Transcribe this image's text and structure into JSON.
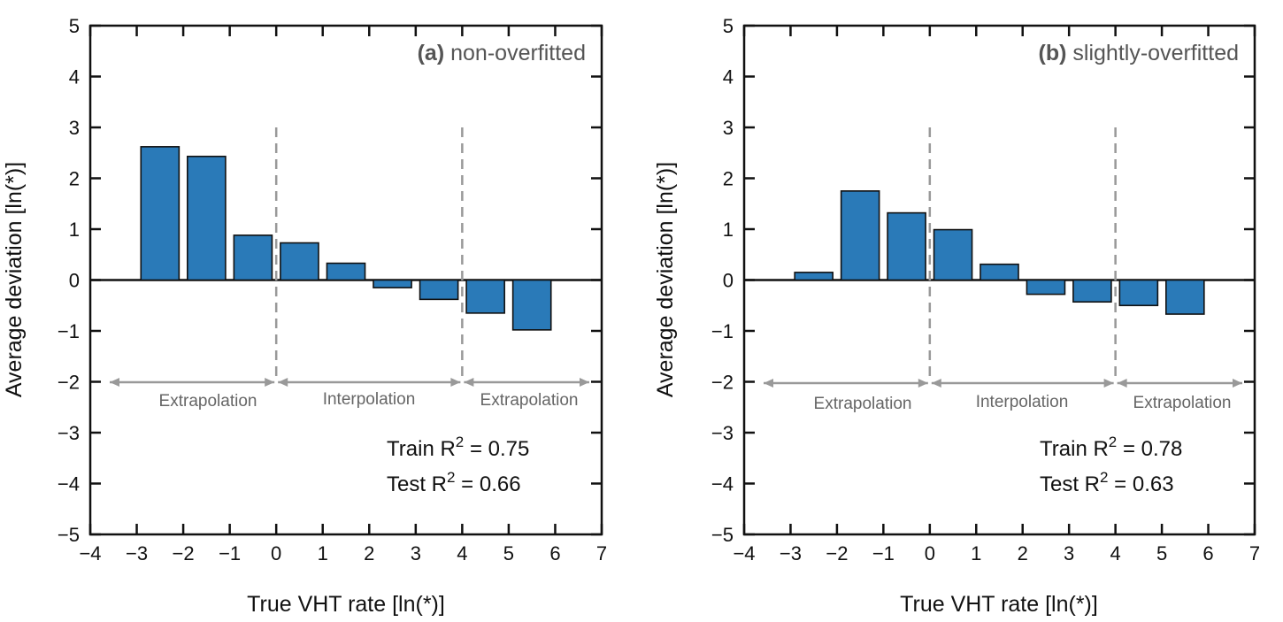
{
  "chart_data": [
    {
      "type": "bar",
      "panel_label": "(a)",
      "title": "non-overfitted",
      "xlabel": "True VHT rate [ln(*)]",
      "ylabel": "Average deviation [ln(*)]",
      "xlim": [
        -4,
        7
      ],
      "ylim": [
        -5,
        5
      ],
      "xticks": [
        -4,
        -3,
        -2,
        -1,
        0,
        1,
        2,
        3,
        4,
        5,
        6,
        7
      ],
      "yticks": [
        -5,
        -4,
        -3,
        -2,
        -1,
        0,
        1,
        2,
        3,
        4,
        5
      ],
      "bar_x": [
        -2.5,
        -1.5,
        -0.5,
        0.5,
        1.5,
        2.5,
        3.5,
        4.5,
        5.5
      ],
      "values": [
        2.62,
        2.43,
        0.88,
        0.73,
        0.33,
        -0.15,
        -0.38,
        -0.65,
        -0.98
      ],
      "bar_color": "#2a7ab8",
      "region_bounds": [
        0,
        4
      ],
      "regions": [
        "Extrapolation",
        "Interpolation",
        "Extrapolation"
      ],
      "train_r2": "Train R",
      "train_r2_value": "= 0.75",
      "test_r2": "Test R",
      "test_r2_value": "= 0.66",
      "r2_superscript": "2"
    },
    {
      "type": "bar",
      "panel_label": "(b)",
      "title": "slightly-overfitted",
      "xlabel": "True VHT rate [ln(*)]",
      "ylabel": "Average deviation [ln(*)]",
      "xlim": [
        -4,
        7
      ],
      "ylim": [
        -5,
        5
      ],
      "xticks": [
        -4,
        -3,
        -2,
        -1,
        0,
        1,
        2,
        3,
        4,
        5,
        6,
        7
      ],
      "yticks": [
        -5,
        -4,
        -3,
        -2,
        -1,
        0,
        1,
        2,
        3,
        4,
        5
      ],
      "bar_x": [
        -2.5,
        -1.5,
        -0.5,
        0.5,
        1.5,
        2.5,
        3.5,
        4.5,
        5.5
      ],
      "values": [
        0.15,
        1.75,
        1.32,
        0.99,
        0.31,
        -0.28,
        -0.43,
        -0.5,
        -0.67
      ],
      "bar_color": "#2a7ab8",
      "region_bounds": [
        0,
        4
      ],
      "regions": [
        "Extrapolation",
        "Interpolation",
        "Extrapolation"
      ],
      "train_r2": "Train R",
      "train_r2_value": "= 0.78",
      "test_r2": "Test R",
      "test_r2_value": "= 0.63",
      "r2_superscript": "2"
    }
  ]
}
